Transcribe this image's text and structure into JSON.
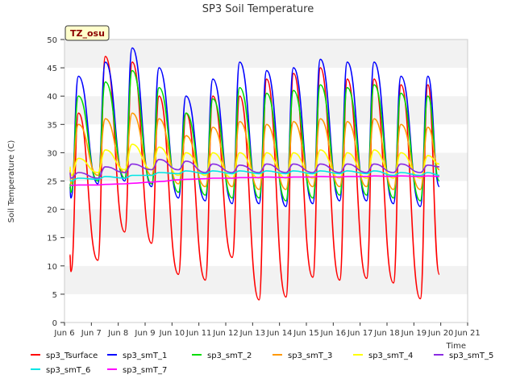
{
  "chart_data": {
    "type": "line",
    "title": "SP3 Soil Temperature",
    "xlabel": "Time",
    "ylabel": "Soil Temperature (C)",
    "ylim": [
      0,
      50
    ],
    "xlim": [
      6.0,
      21.0
    ],
    "yticks": [
      0,
      5,
      10,
      15,
      20,
      25,
      30,
      35,
      40,
      45,
      50
    ],
    "xticks": [
      {
        "value": 6,
        "label": "Jun 6"
      },
      {
        "value": 7,
        "label": "Jun 7"
      },
      {
        "value": 8,
        "label": "Jun 8"
      },
      {
        "value": 9,
        "label": "Jun 9"
      },
      {
        "value": 10,
        "label": "Jun 10"
      },
      {
        "value": 11,
        "label": "Jun 11"
      },
      {
        "value": 12,
        "label": "Jun 12"
      },
      {
        "value": 13,
        "label": "Jun 13"
      },
      {
        "value": 14,
        "label": "Jun 14"
      },
      {
        "value": 15,
        "label": "Jun 15"
      },
      {
        "value": 16,
        "label": "Jun 16"
      },
      {
        "value": 17,
        "label": "Jun 17"
      },
      {
        "value": 18,
        "label": "Jun 18"
      },
      {
        "value": 19,
        "label": "Jun 19"
      },
      {
        "value": 20,
        "label": "Jun 20"
      },
      {
        "value": 21,
        "label": "Jun 21"
      }
    ],
    "grid": "horizontal bands",
    "annotation": "TZ_osu",
    "legend_position": "bottom",
    "x_day_values": [
      6.3,
      7.3,
      8.3,
      9.3,
      10.3,
      11.3,
      12.3,
      13.3,
      14.3,
      15.3,
      16.3,
      17.3,
      18.3,
      19.3
    ],
    "series": [
      {
        "name": "sp3_Tsurface",
        "color": "#ff0000",
        "start": 12.0,
        "end": 8.5,
        "daily_max": [
          37.0,
          47.0,
          46.0,
          40.0,
          37.0,
          40.0,
          40.0,
          43.0,
          44.0,
          45.0,
          43.0,
          43.0,
          42.0,
          42.0
        ],
        "daily_min": [
          9.0,
          11.0,
          16.0,
          14.0,
          8.5,
          7.5,
          11.5,
          4.0,
          4.5,
          8.0,
          7.5,
          7.8,
          7.0,
          4.2
        ]
      },
      {
        "name": "sp3_smT_1",
        "color": "#0000ff",
        "start": 24.0,
        "end": 24.0,
        "daily_max": [
          43.5,
          46.0,
          48.5,
          45.0,
          40.0,
          43.0,
          46.0,
          44.5,
          45.0,
          46.5,
          46.0,
          46.0,
          43.5,
          43.5
        ],
        "daily_min": [
          22.0,
          24.5,
          25.0,
          24.0,
          22.0,
          21.5,
          21.0,
          21.0,
          20.5,
          21.0,
          21.5,
          21.5,
          21.0,
          20.5
        ]
      },
      {
        "name": "sp3_smT_2",
        "color": "#00dd00",
        "start": 24.5,
        "end": 25.0,
        "daily_max": [
          40.0,
          42.5,
          44.5,
          41.5,
          37.0,
          39.5,
          41.5,
          40.5,
          41.0,
          42.0,
          41.5,
          42.0,
          40.5,
          40.0
        ],
        "daily_min": [
          23.0,
          25.0,
          25.5,
          24.5,
          23.0,
          22.5,
          22.0,
          22.0,
          21.5,
          22.0,
          22.5,
          22.5,
          22.0,
          21.5
        ]
      },
      {
        "name": "sp3_smT_3",
        "color": "#ff9900",
        "start": 27.0,
        "end": 27.0,
        "daily_max": [
          35.0,
          36.0,
          37.0,
          36.0,
          33.0,
          34.5,
          35.5,
          35.0,
          35.5,
          36.0,
          35.5,
          36.0,
          35.0,
          34.5
        ],
        "daily_min": [
          24.5,
          26.0,
          26.5,
          26.0,
          24.5,
          24.0,
          24.0,
          23.5,
          23.5,
          24.0,
          24.0,
          24.0,
          23.5,
          23.5
        ]
      },
      {
        "name": "sp3_smT_4",
        "color": "#ffff00",
        "start": 27.5,
        "end": 28.0,
        "daily_max": [
          29.0,
          30.5,
          31.5,
          31.0,
          30.0,
          30.0,
          30.0,
          30.0,
          30.0,
          30.5,
          30.0,
          30.5,
          30.0,
          29.5
        ],
        "daily_min": [
          26.0,
          26.5,
          27.0,
          27.0,
          26.0,
          26.0,
          25.5,
          25.5,
          25.5,
          25.5,
          25.5,
          25.5,
          25.5,
          25.5
        ]
      },
      {
        "name": "sp3_smT_5",
        "color": "#8a2be2",
        "start": 26.5,
        "end": 27.5,
        "daily_max": [
          26.5,
          27.5,
          28.0,
          28.8,
          28.5,
          28.0,
          27.8,
          28.0,
          28.0,
          28.0,
          28.0,
          28.0,
          28.0,
          27.8
        ],
        "daily_min": [
          25.5,
          25.5,
          26.5,
          27.0,
          27.0,
          26.5,
          26.5,
          26.5,
          26.5,
          26.5,
          26.5,
          26.5,
          26.5,
          26.5
        ]
      },
      {
        "name": "sp3_smT_6",
        "color": "#00e5e5",
        "start": 25.2,
        "end": 26.0,
        "daily_max": [
          25.5,
          25.8,
          26.0,
          26.5,
          26.8,
          26.8,
          26.8,
          26.8,
          26.8,
          26.8,
          26.8,
          26.8,
          26.5,
          26.5
        ],
        "daily_min": [
          25.0,
          25.3,
          25.5,
          26.0,
          26.3,
          26.3,
          26.3,
          26.3,
          26.3,
          26.3,
          26.3,
          26.3,
          26.0,
          26.0
        ]
      },
      {
        "name": "sp3_smT_7",
        "color": "#ff00ff",
        "start": 24.2,
        "end": 25.8,
        "daily_max": [
          24.3,
          24.4,
          24.6,
          24.9,
          25.3,
          25.5,
          25.6,
          25.7,
          25.7,
          25.8,
          25.8,
          25.9,
          25.9,
          25.9
        ],
        "daily_min": [
          24.2,
          24.3,
          24.5,
          24.8,
          25.2,
          25.4,
          25.5,
          25.6,
          25.6,
          25.7,
          25.7,
          25.8,
          25.8,
          25.8
        ]
      }
    ]
  }
}
